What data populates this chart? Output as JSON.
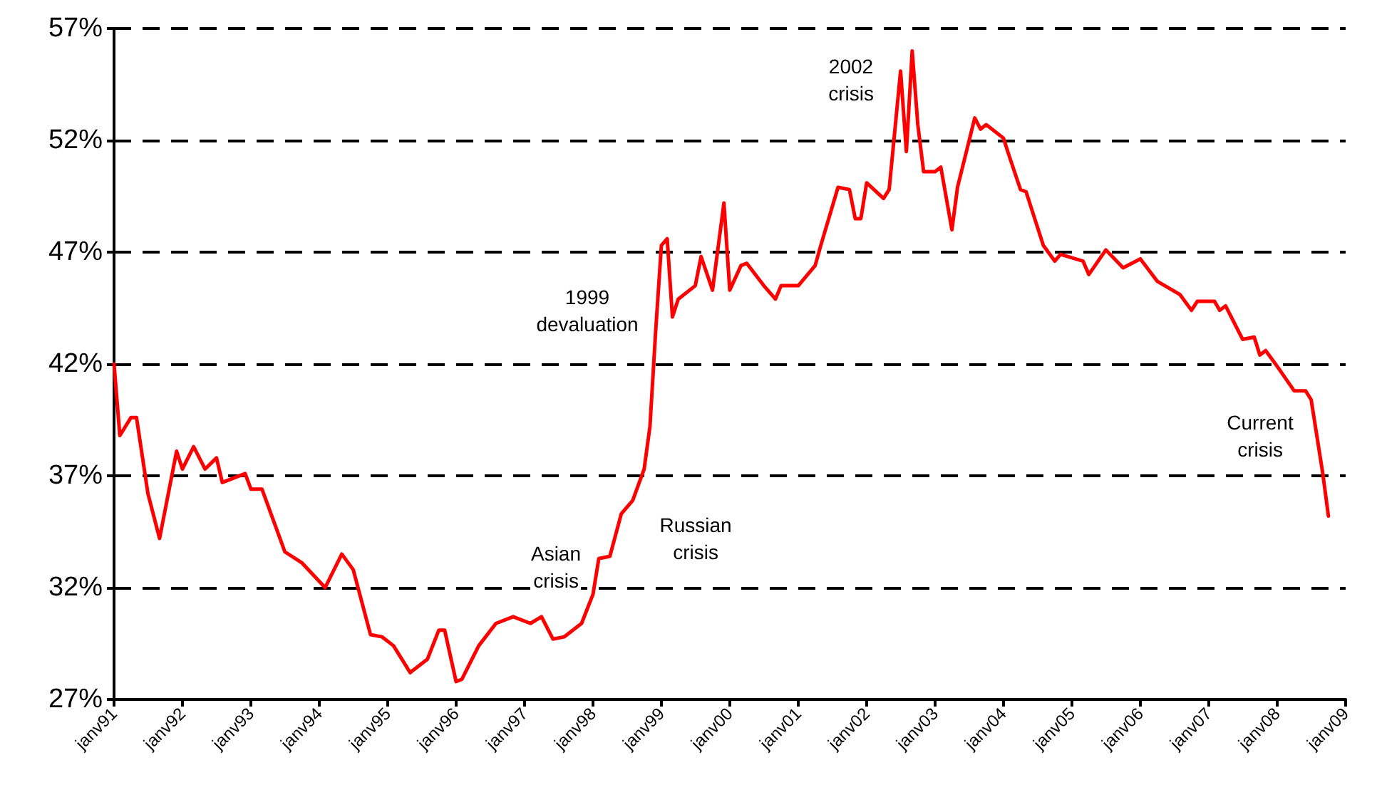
{
  "chart_data": {
    "type": "line",
    "xlim": [
      "1991-01",
      "2009-01"
    ],
    "xticks": [
      {
        "value": "1991-01",
        "label": "janv91"
      },
      {
        "value": "1992-01",
        "label": "janv92"
      },
      {
        "value": "1993-01",
        "label": "janv93"
      },
      {
        "value": "1994-01",
        "label": "janv94"
      },
      {
        "value": "1995-01",
        "label": "janv95"
      },
      {
        "value": "1996-01",
        "label": "janv96"
      },
      {
        "value": "1997-01",
        "label": "janv97"
      },
      {
        "value": "1998-01",
        "label": "janv98"
      },
      {
        "value": "1999-01",
        "label": "janv99"
      },
      {
        "value": "2000-01",
        "label": "janv00"
      },
      {
        "value": "2001-01",
        "label": "janv01"
      },
      {
        "value": "2002-01",
        "label": "janv02"
      },
      {
        "value": "2003-01",
        "label": "janv03"
      },
      {
        "value": "2004-01",
        "label": "janv04"
      },
      {
        "value": "2005-01",
        "label": "janv05"
      },
      {
        "value": "2006-01",
        "label": "janv06"
      },
      {
        "value": "2007-01",
        "label": "janv07"
      },
      {
        "value": "2008-01",
        "label": "janv08"
      },
      {
        "value": "2009-01",
        "label": "janv09"
      }
    ],
    "ylim": [
      27,
      57
    ],
    "yticks": [
      {
        "value": 27,
        "label": "27%"
      },
      {
        "value": 32,
        "label": "32%"
      },
      {
        "value": 37,
        "label": "37%"
      },
      {
        "value": 42,
        "label": "42%"
      },
      {
        "value": 47,
        "label": "47%"
      },
      {
        "value": 52,
        "label": "52%"
      },
      {
        "value": 57,
        "label": "57%"
      }
    ],
    "grid": "y",
    "marker": "none",
    "line_style": "solid",
    "series": [
      {
        "color": "#ff0000",
        "x": [
          "1991-01",
          "1991-02",
          "1991-04",
          "1991-05",
          "1991-07",
          "1991-09",
          "1991-12",
          "1992-01",
          "1992-03",
          "1992-05",
          "1992-07",
          "1992-08",
          "1992-12",
          "1993-01",
          "1993-03",
          "1993-07",
          "1993-10",
          "1994-02",
          "1994-05",
          "1994-07",
          "1994-10",
          "1994-12",
          "1995-02",
          "1995-05",
          "1995-08",
          "1995-10",
          "1995-11",
          "1996-01",
          "1996-02",
          "1996-05",
          "1996-08",
          "1996-11",
          "1997-02",
          "1997-04",
          "1997-06",
          "1997-08",
          "1997-11",
          "1998-01",
          "1998-02",
          "1998-04",
          "1998-06",
          "1998-08",
          "1998-10",
          "1998-11",
          "1998-12",
          "1999-01",
          "1999-02",
          "1999-03",
          "1999-04",
          "1999-07",
          "1999-08",
          "1999-10",
          "1999-12",
          "2000-01",
          "2000-03",
          "2000-04",
          "2000-07",
          "2000-09",
          "2000-10",
          "2001-01",
          "2001-04",
          "2001-05",
          "2001-08",
          "2001-10",
          "2001-11",
          "2001-12",
          "2002-01",
          "2002-04",
          "2002-05",
          "2002-07",
          "2002-08",
          "2002-09",
          "2002-10",
          "2002-11",
          "2003-01",
          "2003-02",
          "2003-04",
          "2003-05",
          "2003-08",
          "2003-09",
          "2003-10",
          "2004-01",
          "2004-02",
          "2004-04",
          "2004-05",
          "2004-08",
          "2004-10",
          "2004-11",
          "2005-03",
          "2005-04",
          "2005-07",
          "2005-10",
          "2006-01",
          "2006-04",
          "2006-08",
          "2006-10",
          "2006-11",
          "2007-02",
          "2007-03",
          "2007-04",
          "2007-07",
          "2007-09",
          "2007-10",
          "2007-11",
          "2008-01",
          "2008-04",
          "2008-06",
          "2008-07",
          "2008-09",
          "2008-10"
        ],
        "values": [
          42.0,
          38.8,
          39.6,
          39.6,
          36.2,
          34.2,
          38.1,
          37.3,
          38.3,
          37.3,
          37.8,
          36.7,
          37.1,
          36.4,
          36.4,
          33.6,
          33.1,
          32.0,
          33.5,
          32.8,
          29.9,
          29.8,
          29.4,
          28.2,
          28.8,
          30.1,
          30.1,
          27.8,
          27.9,
          29.4,
          30.4,
          30.7,
          30.4,
          30.7,
          29.7,
          29.8,
          30.4,
          31.7,
          33.3,
          33.4,
          35.3,
          35.9,
          37.3,
          39.2,
          43.4,
          47.3,
          47.6,
          44.1,
          44.9,
          45.5,
          46.8,
          45.3,
          49.2,
          45.3,
          46.4,
          46.5,
          45.5,
          44.9,
          45.5,
          45.5,
          46.4,
          47.3,
          49.9,
          49.8,
          48.5,
          48.5,
          50.1,
          49.4,
          49.8,
          55.1,
          51.5,
          56.0,
          52.7,
          50.6,
          50.6,
          50.8,
          48.0,
          49.9,
          53.0,
          52.5,
          52.7,
          52.1,
          51.3,
          49.8,
          49.7,
          47.3,
          46.6,
          46.9,
          46.6,
          46.0,
          47.1,
          46.3,
          46.7,
          45.7,
          45.1,
          44.4,
          44.8,
          44.8,
          44.4,
          44.6,
          43.1,
          43.2,
          42.4,
          42.6,
          41.9,
          40.8,
          40.8,
          40.4,
          37.1,
          35.2
        ]
      }
    ],
    "annotations": [
      "1999\ndevaluation",
      "Asian\ncrisis",
      "Russian\ncrisis",
      "2002\ncrisis",
      "Current\ncrisis"
    ]
  }
}
